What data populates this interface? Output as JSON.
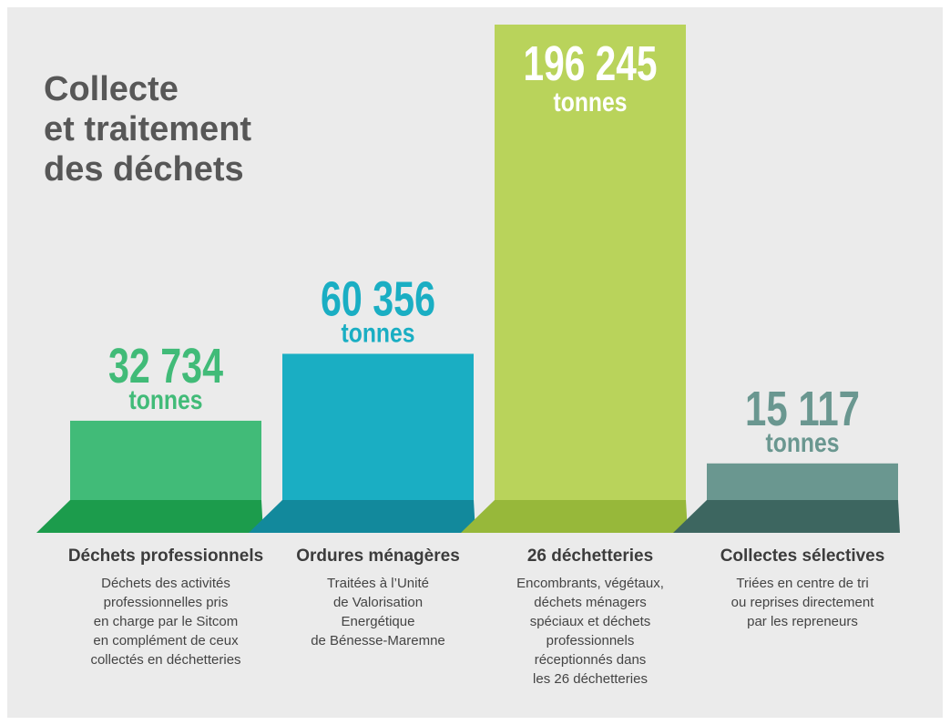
{
  "chart_data": {
    "type": "bar",
    "title": [
      "Collecte",
      "et traitement",
      "des déchets"
    ],
    "categories": [
      "Déchets professionnels",
      "Ordures ménagères",
      "26 déchetteries",
      "Collectes sélectives"
    ],
    "values": [
      32734,
      60356,
      196245,
      15117
    ],
    "value_labels": [
      "32 734",
      "60 356",
      "196 245",
      "15 117"
    ],
    "unit": "tonnes",
    "colors": [
      "#41bb78",
      "#1aaec3",
      "#b9d35b",
      "#6a9790"
    ],
    "shade_colors": [
      "#1c9c4c",
      "#12899c",
      "#97b83a",
      "#3d6660"
    ],
    "descriptions": [
      [
        "Déchets des activités",
        "professionnelles pris",
        "en charge par le Sitcom",
        "en complément de ceux",
        "collectés en déchetteries"
      ],
      [
        "Traitées à l’Unité",
        "de Valorisation",
        "Energétique",
        "de Bénesse-Maremne"
      ],
      [
        "Encombrants, végétaux,",
        "déchets ménagers",
        "spéciaux et déchets",
        "professionnels",
        "réceptionnés dans",
        "les 26 déchetteries"
      ],
      [
        "Triées en centre de tri",
        "ou reprises directement",
        "par les repreneurs"
      ]
    ]
  }
}
